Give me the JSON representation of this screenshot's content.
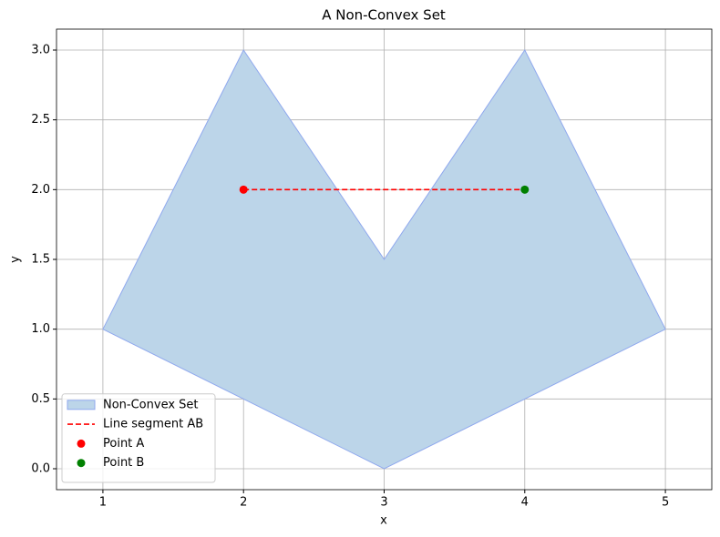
{
  "chart_data": {
    "type": "line",
    "title": "A Non-Convex Set",
    "x_label": "x",
    "y_label": "y",
    "xlim": [
      0.67,
      5.33
    ],
    "ylim": [
      -0.15,
      3.15
    ],
    "xticks": [
      1,
      2,
      3,
      4,
      5
    ],
    "yticks": [
      {
        "value": 0,
        "label": "0.0"
      },
      {
        "value": 0.5,
        "label": "0.5"
      },
      {
        "value": 1,
        "label": "1.0"
      },
      {
        "value": 1.5,
        "label": "1.5"
      },
      {
        "value": 2,
        "label": "2.0"
      },
      {
        "value": 2.5,
        "label": "2.5"
      },
      {
        "value": 3,
        "label": "3.0"
      }
    ],
    "grid": true,
    "legend": "lower left",
    "series": [
      {
        "name": "Non-Convex Set",
        "kind": "fill",
        "color": "#bcd5e9",
        "edge_color": "#8fa8ee",
        "x": [
          1,
          2,
          3,
          4,
          5,
          3
        ],
        "values": [
          1,
          3,
          1.5,
          3,
          1,
          0
        ]
      },
      {
        "name": "Line segment AB",
        "kind": "dashed-line",
        "color": "#ff0000",
        "x": [
          2,
          4
        ],
        "values": [
          2,
          2
        ]
      },
      {
        "name": "Point A",
        "kind": "point",
        "color": "#ff0000",
        "x": [
          2
        ],
        "values": [
          2
        ]
      },
      {
        "name": "Point B",
        "kind": "point",
        "color": "#008000",
        "x": [
          4
        ],
        "values": [
          2
        ]
      }
    ]
  }
}
